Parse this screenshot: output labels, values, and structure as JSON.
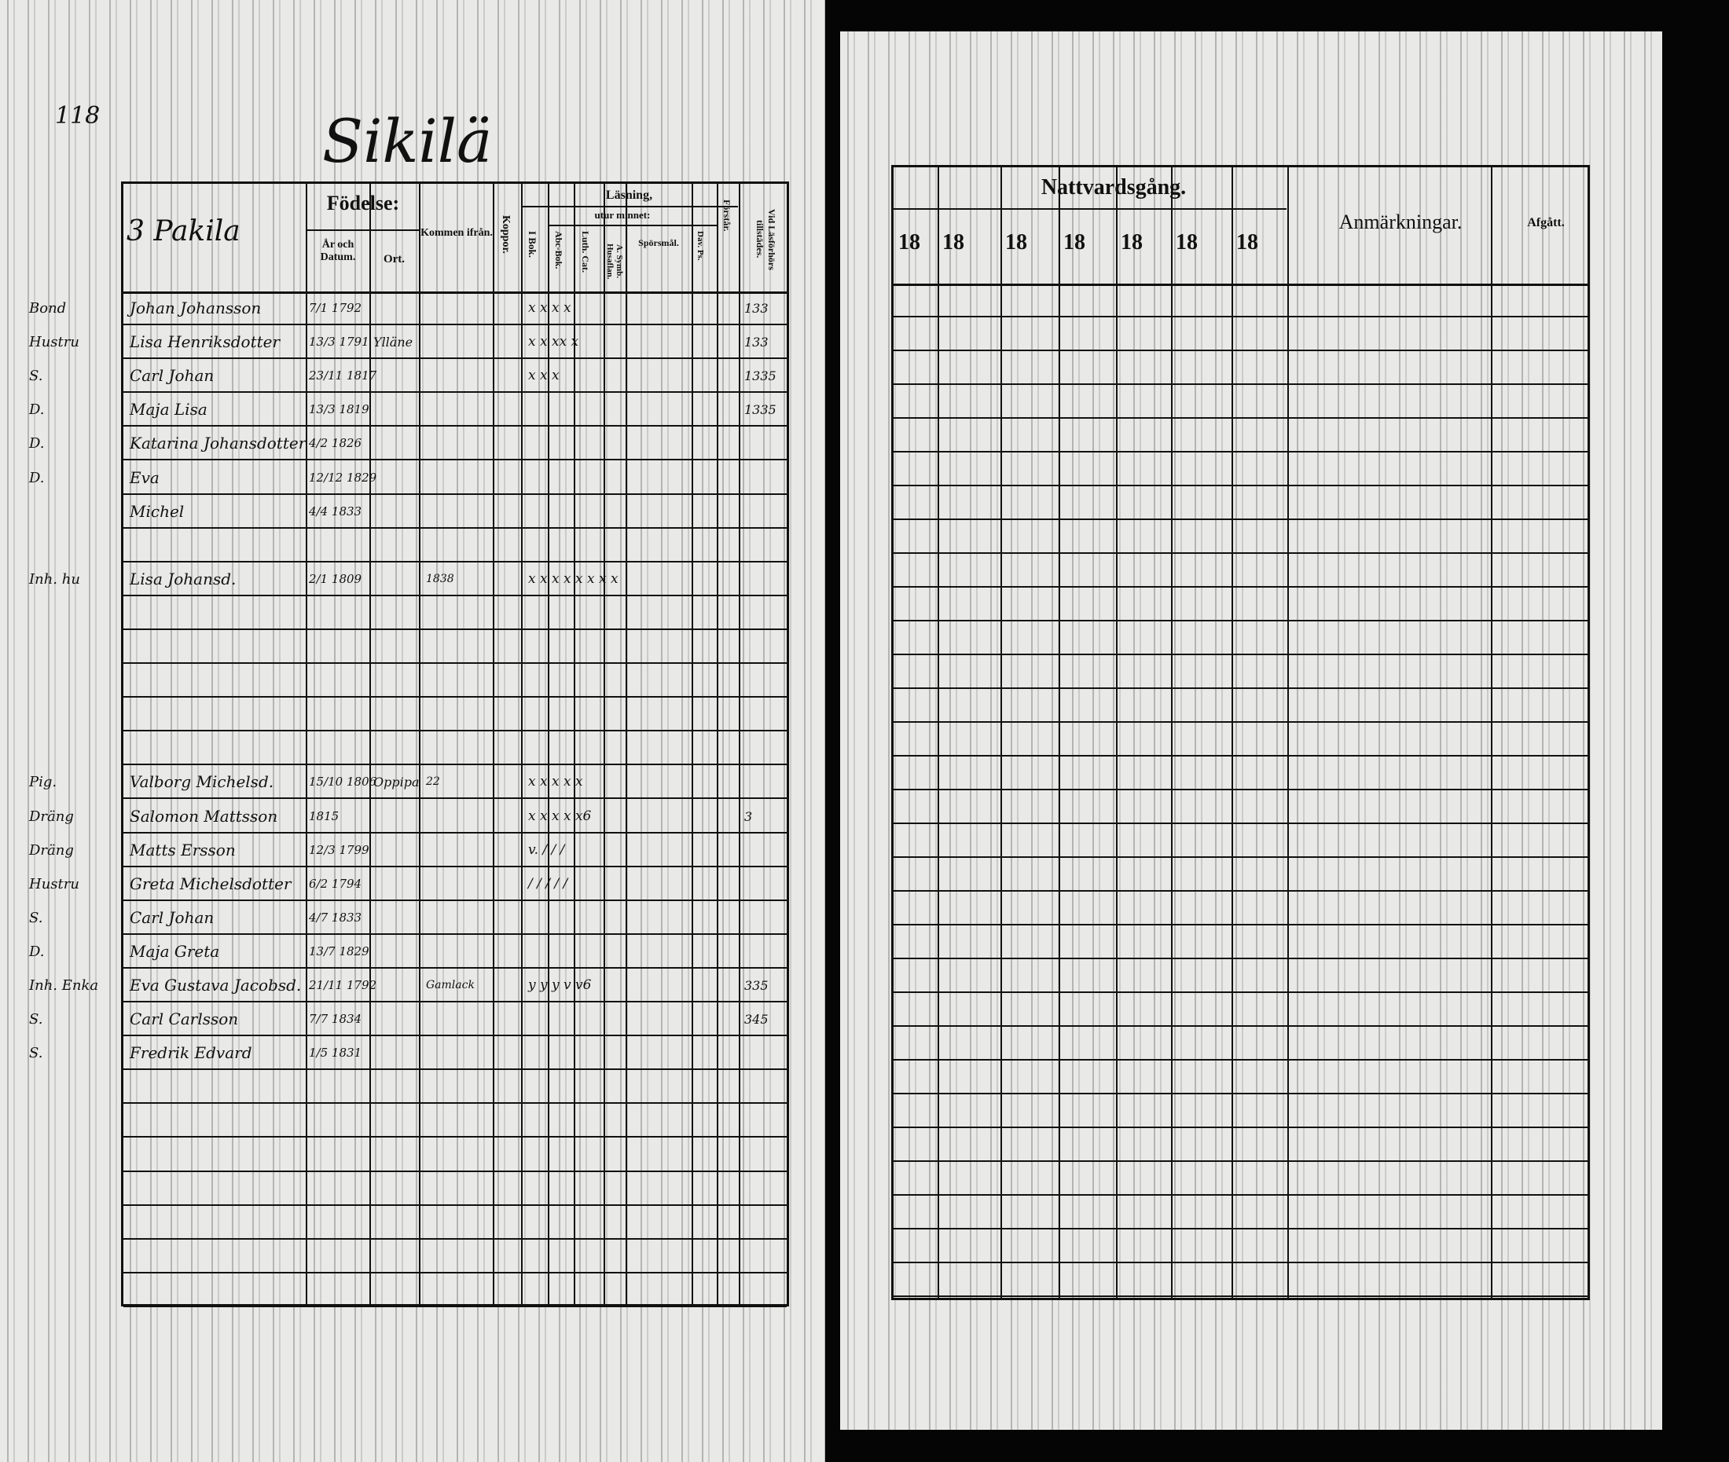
{
  "left_page": {
    "page_number": "118",
    "village_title": "Sikilä",
    "farm_title": "3 Pakila",
    "headers": {
      "birth": "Födelse:",
      "year_date": "År och Datum.",
      "place": "Ort.",
      "came_from": "Kommen ifrån.",
      "smallpox": "Koppor.",
      "reading": "Läsning,",
      "by_heart": "utur minnet:",
      "book": "I Bok.",
      "abc_book": "Abc-Bok.",
      "luth_cat": "Luth. Cat.",
      "symb_books": "A. Symb. Husaflan.",
      "questions": "Spörsmål.",
      "dav_ps": "Dav. Ps.",
      "understands": "Förstår.",
      "communion_age": "Vid Läsförhörs tillstädes."
    },
    "entries": [
      {
        "row": 0,
        "title": "Bond",
        "name": "Johan Johansson",
        "date": "7/1 1792",
        "place": "",
        "came_from": "",
        "marks": "x x x x",
        "vid": "133"
      },
      {
        "row": 1,
        "title": "Hustru",
        "name": "Lisa Henriksdotter",
        "date": "13/3 1791",
        "place": "Ylläne",
        "came_from": "",
        "marks": "x x xx x",
        "vid": "133"
      },
      {
        "row": 2,
        "title": "S.",
        "name": "Carl Johan",
        "date": "23/11 1817",
        "place": "",
        "came_from": "",
        "marks": "x x x",
        "vid": "1335"
      },
      {
        "row": 3,
        "title": "D.",
        "name": "Maja Lisa",
        "date": "13/3 1819",
        "place": "",
        "came_from": "",
        "marks": "",
        "vid": "1335"
      },
      {
        "row": 4,
        "title": "D.",
        "name": "Katarina Johansdotter",
        "date": "4/2 1826",
        "place": "",
        "came_from": "",
        "marks": "",
        "vid": ""
      },
      {
        "row": 5,
        "title": "D.",
        "name": "Eva",
        "date": "12/12 1829",
        "place": "",
        "came_from": "",
        "marks": "",
        "vid": ""
      },
      {
        "row": 6,
        "title": "",
        "name": "Michel",
        "date": "4/4 1833",
        "place": "",
        "came_from": "",
        "marks": "",
        "vid": ""
      },
      {
        "row": 8,
        "title": "Inh. hu",
        "name": "Lisa Johansd.",
        "date": "2/1 1809",
        "place": "",
        "came_from": "1838",
        "marks": "x x x x x x x x",
        "vid": ""
      },
      {
        "row": 14,
        "title": "Pig.",
        "name": "Valborg Michelsd.",
        "date": "15/10 1806",
        "place": "Oppipa",
        "came_from": "22",
        "marks": "x x x x x",
        "vid": ""
      },
      {
        "row": 15,
        "title": "Dräng",
        "name": "Salomon Mattsson",
        "date": "1815",
        "place": "",
        "came_from": "",
        "marks": "x x x x x6",
        "vid": "3"
      },
      {
        "row": 16,
        "title": "Dräng",
        "name": "Matts Ersson",
        "date": "12/3 1799",
        "place": "",
        "came_from": "",
        "marks": "v. / / /",
        "vid": ""
      },
      {
        "row": 17,
        "title": "Hustru",
        "name": "Greta Michelsdotter",
        "date": "6/2 1794",
        "place": "",
        "came_from": "",
        "marks": "/ / / / /",
        "vid": ""
      },
      {
        "row": 18,
        "title": "S.",
        "name": "Carl Johan",
        "date": "4/7 1833",
        "place": "",
        "came_from": "",
        "marks": "",
        "vid": ""
      },
      {
        "row": 19,
        "title": "D.",
        "name": "Maja Greta",
        "date": "13/7 1829",
        "place": "",
        "came_from": "",
        "marks": "",
        "vid": ""
      },
      {
        "row": 20,
        "title": "Inh. Enka",
        "name": "Eva Gustava Jacobsd.",
        "date": "21/11 1792",
        "place": "",
        "came_from": "Gamlack",
        "marks": "y y y v v6",
        "vid": "335"
      },
      {
        "row": 21,
        "title": "S.",
        "name": "Carl Carlsson",
        "date": "7/7 1834",
        "place": "",
        "came_from": "",
        "marks": "",
        "vid": "345"
      },
      {
        "row": 22,
        "title": "S.",
        "name": "Fredrik Edvard",
        "date": "1/5 1831",
        "place": "",
        "came_from": "",
        "marks": "",
        "vid": ""
      }
    ]
  },
  "right_page": {
    "headers": {
      "communion": "Nattvardsgång.",
      "year_prefixes": [
        "18",
        "18",
        "18",
        "18",
        "18",
        "18",
        "18"
      ],
      "remarks": "Anmärkningar.",
      "departed": "Afgått."
    }
  },
  "colors": {
    "paper": "#e9e9e7",
    "ink": "#111111",
    "background": "#050505"
  }
}
